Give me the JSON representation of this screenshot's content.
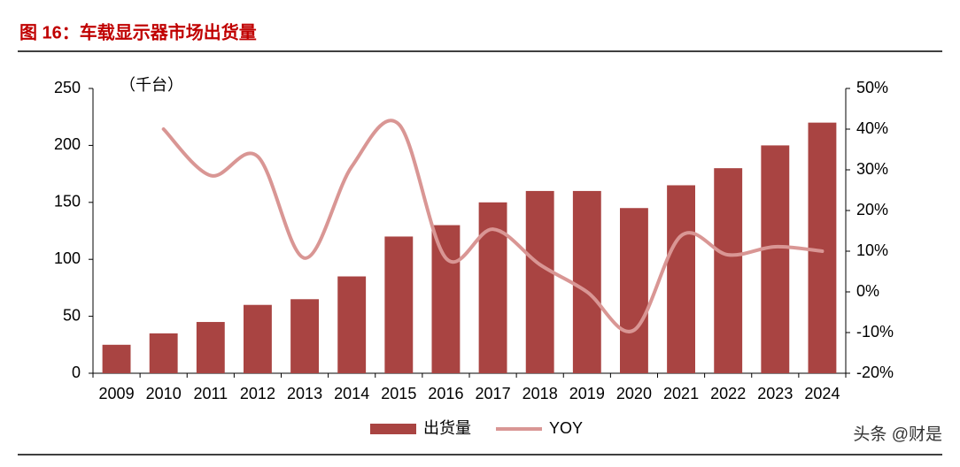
{
  "chart_data": {
    "type": "bar-line",
    "title": "图 16：车载显示器市场出货量",
    "y_label": "（千台）",
    "watermark": "头条 @财是",
    "categories": [
      "2009",
      "2010",
      "2011",
      "2012",
      "2013",
      "2014",
      "2015",
      "2016",
      "2017",
      "2018",
      "2019",
      "2020",
      "2021",
      "2022",
      "2023",
      "2024"
    ],
    "series": [
      {
        "name": "出货量",
        "type": "bar",
        "color": "#a94442",
        "values": [
          25,
          35,
          45,
          60,
          65,
          85,
          120,
          130,
          150,
          160,
          160,
          145,
          165,
          180,
          200,
          220
        ]
      },
      {
        "name": "YOY",
        "type": "line",
        "axis": "y2",
        "color": "#d99694",
        "values": [
          null,
          40,
          28.6,
          33.3,
          8.3,
          30.8,
          41.2,
          8.3,
          15.4,
          6.7,
          0,
          -9.4,
          13.8,
          9.1,
          11.1,
          10
        ]
      }
    ],
    "ylim": [
      0,
      250
    ],
    "yticks": [
      0,
      50,
      100,
      150,
      200,
      250
    ],
    "y2lim": [
      -20,
      50
    ],
    "y2ticks": [
      {
        "value": -20,
        "label": "-20%"
      },
      {
        "value": -10,
        "label": "-10%"
      },
      {
        "value": 0,
        "label": "0%"
      },
      {
        "value": 10,
        "label": "10%"
      },
      {
        "value": 20,
        "label": "20%"
      },
      {
        "value": 30,
        "label": "30%"
      },
      {
        "value": 40,
        "label": "40%"
      },
      {
        "value": 50,
        "label": "50%"
      }
    ]
  }
}
